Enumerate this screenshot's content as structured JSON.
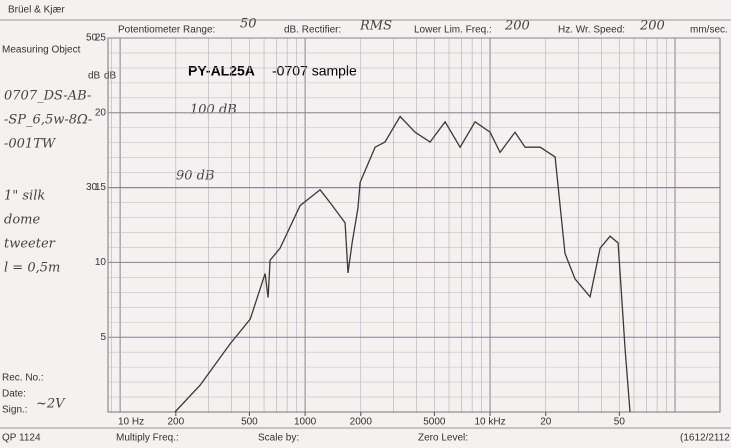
{
  "chart_data": {
    "type": "line",
    "title": "PY-AL25A",
    "subtitle": "-0707 sample",
    "header": {
      "brand": "Brüel & Kjær",
      "pot_label": "Potentiometer Range:",
      "pot_value": "50",
      "rect_label": "dB. Rectifier:",
      "rect_value": "RMS",
      "llf_label": "Lower Lim. Freq.:",
      "llf_value": "200",
      "speed_label": "Hz. Wr. Speed:",
      "speed_value": "200",
      "speed_unit": "mm/sec."
    },
    "left_notes": {
      "object_label": "Measuring Object",
      "lines": [
        "0707_DS-AB-",
        "-SP_6,5w-8Ω-",
        "-001TW",
        "1\" silk",
        "dome",
        "tweeter",
        "l = 0,5m"
      ],
      "rec": "Rec. No.:",
      "date": "Date:",
      "sign": "Sign.:",
      "sign_value": "~2V"
    },
    "footer": {
      "code": "QP 1124",
      "multiply": "Multiply Freq.:",
      "scale": "Scale by:",
      "zero": "Zero Level:",
      "ref": "(1612/2112"
    },
    "annotations": [
      "100 dB",
      "90 dB"
    ],
    "x_unit_left": "10 Hz",
    "y_unit": [
      "dB",
      "dB"
    ],
    "x": [
      198,
      271,
      393,
      505,
      608,
      631,
      647,
      733,
      940,
      1205,
      1365,
      1645,
      1707,
      1795,
      1932,
      1984,
      2390,
      2705,
      3263,
      3935,
      4742,
      5713,
      6883,
      8297,
      10000,
      11324,
      13647,
      15457,
      18633,
      22458,
      25420,
      28780,
      34740,
      39360,
      44570,
      49220,
      53700,
      57100
    ],
    "series": [
      {
        "name": "response",
        "color": "#3a3a3a",
        "values": [
          0,
          3.6,
          9.1,
          12.4,
          18.5,
          15.3,
          20.3,
          21.9,
          27.6,
          29.7,
          28.0,
          25.3,
          18.6,
          22.6,
          27.3,
          30.7,
          35.4,
          36.1,
          39.5,
          37.4,
          36.1,
          38.8,
          35.4,
          38.8,
          37.4,
          34.7,
          37.4,
          35.4,
          35.4,
          34.1,
          21.2,
          17.8,
          15.4,
          21.9,
          23.5,
          22.6,
          8.4,
          0
        ]
      }
    ],
    "xscale": "log",
    "xlim": [
      86,
      175000
    ],
    "xticks": [
      200,
      500,
      1000,
      2000,
      5000,
      {
        "value": 10000,
        "label": "10 kHz"
      },
      {
        "value": 20000,
        "label": "20"
      },
      {
        "value": 50000,
        "label": "50"
      }
    ],
    "ylim": [
      0,
      50
    ],
    "yticks": [
      30,
      50
    ],
    "y2lim": [
      0,
      25
    ],
    "y2ticks": [
      5,
      10,
      15,
      20,
      25
    ],
    "grid": true
  }
}
